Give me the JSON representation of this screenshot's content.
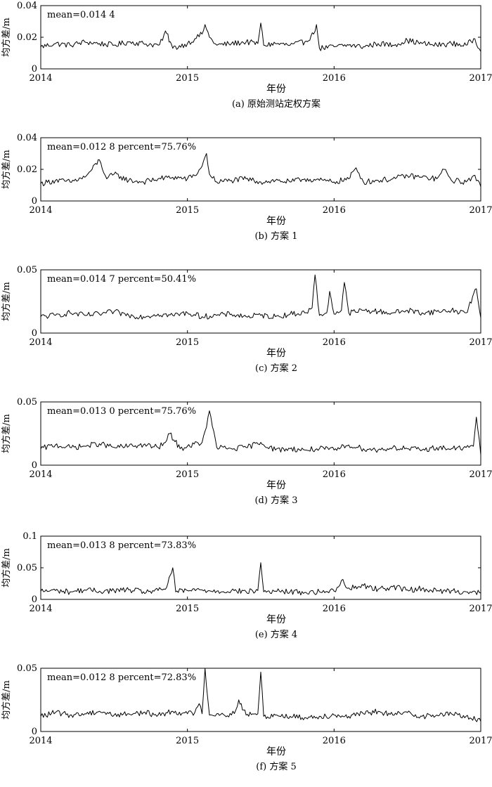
{
  "chart_data": [
    {
      "type": "line",
      "caption": "(a) 原始测站定权方案",
      "xlabel": "年份",
      "ylabel": "均方差/m",
      "xlim": [
        2014,
        2017
      ],
      "ylim": [
        0,
        0.04
      ],
      "xticks": [
        "2014",
        "2015",
        "2016",
        "2017"
      ],
      "yticks": [
        "0",
        "0.02",
        "0.04"
      ],
      "annotation": "mean=0.014 4",
      "series": [
        {
          "x": [
            2014.0,
            2014.1,
            2014.2,
            2014.3,
            2014.4,
            2014.5,
            2014.6,
            2014.7,
            2014.8,
            2014.83,
            2014.85,
            2014.9,
            2015.0,
            2015.05,
            2015.1,
            2015.12,
            2015.15,
            2015.2,
            2015.3,
            2015.4,
            2015.48,
            2015.5,
            2015.52,
            2015.6,
            2015.7,
            2015.8,
            2015.86,
            2015.88,
            2015.9,
            2016.0,
            2016.1,
            2016.2,
            2016.3,
            2016.4,
            2016.5,
            2016.6,
            2016.7,
            2016.8,
            2016.9,
            2016.96,
            2017.0
          ],
          "y": [
            0.014,
            0.016,
            0.015,
            0.017,
            0.016,
            0.015,
            0.017,
            0.016,
            0.015,
            0.018,
            0.024,
            0.013,
            0.016,
            0.019,
            0.022,
            0.028,
            0.02,
            0.015,
            0.016,
            0.017,
            0.016,
            0.029,
            0.015,
            0.016,
            0.015,
            0.017,
            0.022,
            0.028,
            0.013,
            0.014,
            0.015,
            0.014,
            0.016,
            0.015,
            0.018,
            0.016,
            0.015,
            0.016,
            0.015,
            0.019,
            0.011
          ]
        }
      ]
    },
    {
      "type": "line",
      "caption": "(b) 方案 1",
      "xlabel": "年份",
      "ylabel": "均方差/m",
      "xlim": [
        2014,
        2017
      ],
      "ylim": [
        0,
        0.04
      ],
      "xticks": [
        "2014",
        "2015",
        "2016",
        "2017"
      ],
      "yticks": [
        "0",
        "0.02",
        "0.04"
      ],
      "annotation": "mean=0.012 8    percent=75.76%",
      "series": [
        {
          "x": [
            2014.0,
            2014.1,
            2014.2,
            2014.3,
            2014.35,
            2014.4,
            2014.45,
            2014.5,
            2014.6,
            2014.7,
            2014.8,
            2014.9,
            2015.0,
            2015.05,
            2015.1,
            2015.13,
            2015.15,
            2015.2,
            2015.3,
            2015.4,
            2015.5,
            2015.6,
            2015.7,
            2015.8,
            2015.9,
            2016.0,
            2016.1,
            2016.15,
            2016.2,
            2016.3,
            2016.4,
            2016.5,
            2016.6,
            2016.7,
            2016.75,
            2016.8,
            2016.9,
            2016.95,
            2017.0
          ],
          "y": [
            0.011,
            0.013,
            0.012,
            0.015,
            0.02,
            0.026,
            0.014,
            0.017,
            0.013,
            0.012,
            0.014,
            0.015,
            0.014,
            0.016,
            0.022,
            0.03,
            0.017,
            0.012,
            0.013,
            0.014,
            0.012,
            0.013,
            0.012,
            0.014,
            0.013,
            0.012,
            0.014,
            0.021,
            0.012,
            0.013,
            0.014,
            0.016,
            0.015,
            0.014,
            0.02,
            0.013,
            0.012,
            0.016,
            0.009
          ]
        }
      ]
    },
    {
      "type": "line",
      "caption": "(c) 方案 2",
      "xlabel": "年份",
      "ylabel": "均方差/m",
      "xlim": [
        2014,
        2017
      ],
      "ylim": [
        0,
        0.05
      ],
      "xticks": [
        "2014",
        "2015",
        "2016",
        "2017"
      ],
      "yticks": [
        "0",
        "0.05"
      ],
      "annotation": "mean=0.014 7    percent=50.41%",
      "series": [
        {
          "x": [
            2014.0,
            2014.1,
            2014.2,
            2014.3,
            2014.4,
            2014.5,
            2014.6,
            2014.7,
            2014.8,
            2014.9,
            2015.0,
            2015.1,
            2015.2,
            2015.3,
            2015.4,
            2015.5,
            2015.6,
            2015.7,
            2015.8,
            2015.85,
            2015.87,
            2015.9,
            2015.95,
            2015.97,
            2016.0,
            2016.05,
            2016.07,
            2016.1,
            2016.2,
            2016.3,
            2016.4,
            2016.5,
            2016.6,
            2016.7,
            2016.8,
            2016.9,
            2016.97,
            2017.0
          ],
          "y": [
            0.013,
            0.014,
            0.016,
            0.014,
            0.015,
            0.017,
            0.014,
            0.013,
            0.015,
            0.014,
            0.016,
            0.013,
            0.014,
            0.015,
            0.013,
            0.014,
            0.013,
            0.015,
            0.016,
            0.02,
            0.046,
            0.014,
            0.016,
            0.033,
            0.015,
            0.018,
            0.04,
            0.016,
            0.018,
            0.017,
            0.016,
            0.018,
            0.016,
            0.017,
            0.018,
            0.016,
            0.035,
            0.012
          ]
        }
      ]
    },
    {
      "type": "line",
      "caption": "(d) 方案 3",
      "xlabel": "年份",
      "ylabel": "均方差/m",
      "xlim": [
        2014,
        2017
      ],
      "ylim": [
        0,
        0.05
      ],
      "xticks": [
        "2014",
        "2015",
        "2016",
        "2017"
      ],
      "yticks": [
        "0",
        "0.05"
      ],
      "annotation": "mean=0.013 0    percent=75.76%",
      "series": [
        {
          "x": [
            2014.0,
            2014.1,
            2014.2,
            2014.3,
            2014.4,
            2014.5,
            2014.6,
            2014.7,
            2014.8,
            2014.85,
            2014.88,
            2014.95,
            2015.0,
            2015.1,
            2015.13,
            2015.15,
            2015.2,
            2015.3,
            2015.4,
            2015.5,
            2015.6,
            2015.7,
            2015.8,
            2015.9,
            2016.0,
            2016.1,
            2016.2,
            2016.3,
            2016.4,
            2016.5,
            2016.6,
            2016.7,
            2016.8,
            2016.9,
            2016.95,
            2016.97,
            2017.0
          ],
          "y": [
            0.013,
            0.016,
            0.014,
            0.015,
            0.017,
            0.014,
            0.015,
            0.016,
            0.014,
            0.018,
            0.025,
            0.013,
            0.015,
            0.018,
            0.03,
            0.043,
            0.014,
            0.013,
            0.014,
            0.018,
            0.012,
            0.013,
            0.012,
            0.013,
            0.012,
            0.016,
            0.013,
            0.012,
            0.014,
            0.013,
            0.012,
            0.014,
            0.013,
            0.014,
            0.015,
            0.038,
            0.008
          ]
        }
      ]
    },
    {
      "type": "line",
      "caption": "(e) 方案 4",
      "xlabel": "年份",
      "ylabel": "均方差/m",
      "xlim": [
        2014,
        2017
      ],
      "ylim": [
        0,
        0.1
      ],
      "xticks": [
        "2014",
        "2015",
        "2016",
        "2017"
      ],
      "yticks": [
        "0",
        "0.05",
        "0.1"
      ],
      "annotation": "mean=0.013 8    percent=73.83%",
      "series": [
        {
          "x": [
            2014.0,
            2014.1,
            2014.2,
            2014.3,
            2014.4,
            2014.5,
            2014.6,
            2014.7,
            2014.8,
            2014.85,
            2014.9,
            2014.92,
            2015.0,
            2015.1,
            2015.2,
            2015.3,
            2015.4,
            2015.48,
            2015.5,
            2015.52,
            2015.6,
            2015.7,
            2015.8,
            2015.9,
            2016.0,
            2016.05,
            2016.1,
            2016.2,
            2016.3,
            2016.4,
            2016.5,
            2016.6,
            2016.7,
            2016.8,
            2016.9,
            2017.0
          ],
          "y": [
            0.013,
            0.014,
            0.012,
            0.015,
            0.013,
            0.014,
            0.015,
            0.012,
            0.014,
            0.016,
            0.05,
            0.012,
            0.014,
            0.015,
            0.013,
            0.014,
            0.012,
            0.014,
            0.058,
            0.012,
            0.013,
            0.012,
            0.011,
            0.012,
            0.013,
            0.03,
            0.018,
            0.022,
            0.016,
            0.02,
            0.015,
            0.017,
            0.013,
            0.014,
            0.012,
            0.01
          ]
        }
      ]
    },
    {
      "type": "line",
      "caption": "(f) 方案 5",
      "xlabel": "年份",
      "ylabel": "均方差/m",
      "xlim": [
        2014,
        2017
      ],
      "ylim": [
        0,
        0.05
      ],
      "xticks": [
        "2014",
        "2015",
        "2016",
        "2017"
      ],
      "yticks": [
        "0",
        "0.05"
      ],
      "annotation": "mean=0.012 8    percent=72.83%",
      "series": [
        {
          "x": [
            2014.0,
            2014.1,
            2014.2,
            2014.3,
            2014.4,
            2014.5,
            2014.6,
            2014.7,
            2014.8,
            2014.9,
            2015.0,
            2015.05,
            2015.08,
            2015.1,
            2015.12,
            2015.15,
            2015.2,
            2015.3,
            2015.33,
            2015.35,
            2015.4,
            2015.48,
            2015.5,
            2015.52,
            2015.6,
            2015.7,
            2015.8,
            2015.9,
            2016.0,
            2016.1,
            2016.2,
            2016.3,
            2016.4,
            2016.5,
            2016.6,
            2016.7,
            2016.8,
            2016.9,
            2017.0
          ],
          "y": [
            0.012,
            0.015,
            0.013,
            0.014,
            0.016,
            0.013,
            0.014,
            0.015,
            0.013,
            0.016,
            0.014,
            0.015,
            0.022,
            0.014,
            0.05,
            0.013,
            0.014,
            0.013,
            0.017,
            0.025,
            0.013,
            0.014,
            0.047,
            0.012,
            0.013,
            0.012,
            0.011,
            0.012,
            0.013,
            0.012,
            0.014,
            0.016,
            0.013,
            0.015,
            0.012,
            0.013,
            0.014,
            0.012,
            0.008
          ]
        }
      ]
    }
  ]
}
